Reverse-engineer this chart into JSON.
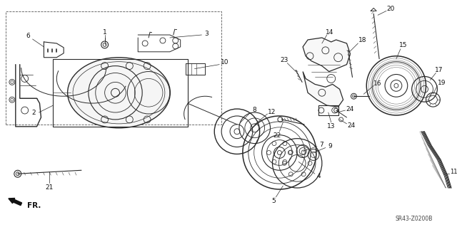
{
  "bg_color": "#ffffff",
  "diagram_code": "SR43-Z0200B",
  "fr_label": "FR.",
  "line_color": "#2a2a2a",
  "label_color": "#111111"
}
